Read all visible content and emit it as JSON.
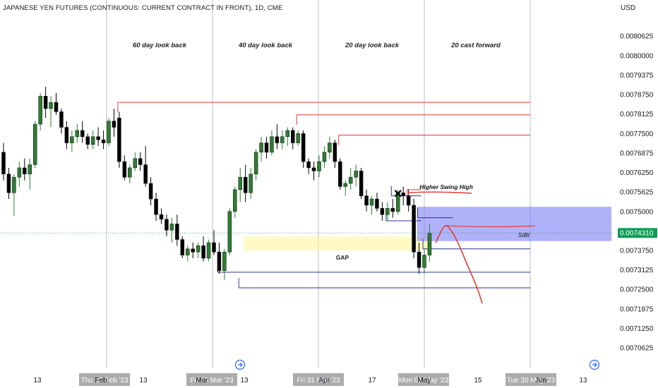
{
  "header": {
    "title": "JAPANESE YEN FUTURES (CONTINUOUS: CURRENT CONTRACT IN FRONT), 1D, CME",
    "currency": "USD"
  },
  "colors": {
    "up": "#2e7d32",
    "down": "#000000",
    "resistance": "#e53935",
    "support": "#283593",
    "gap_zone": "#fff59d",
    "sibi_zone": "#7b7ff5",
    "forecast": "#e53935",
    "last_price": "#0f9d58"
  },
  "chart_data": {
    "type": "candlestick",
    "title": "JAPANESE YEN FUTURES (CONTINUOUS: CURRENT CONTRACT IN FRONT), 1D, CME",
    "ylabel": "USD",
    "ylim": [
      0.00704,
      0.00814
    ],
    "y_ticks": [
      "0.0080625",
      "0.0080000",
      "0.0079375",
      "0.0078750",
      "0.0078125",
      "0.0077500",
      "0.0076875",
      "0.0076250",
      "0.0075625",
      "0.0075000",
      "0.0074375",
      "0.0073750",
      "0.0073125",
      "0.0072500",
      "0.0071875",
      "0.0071250",
      "0.0070625"
    ],
    "x_ticks": [
      "13",
      "Feb",
      "13",
      "Mar",
      "13",
      "Apr",
      "17",
      "May",
      "15",
      "Jun",
      "13"
    ],
    "x_tick_highlights": [
      "Thu 02 Feb '23",
      "Fri 03 Mar '23",
      "Fri 31 Mar '23",
      "Mon 01 May '23",
      "Tue 30 May '23"
    ],
    "last_price": "0.0074310",
    "section_labels": [
      "60 day look back",
      "40 day look back",
      "20 day look back",
      "20 cast forward"
    ],
    "annotations": {
      "gap": "GAP",
      "sibi": "SIBI",
      "higher_swing_high": "Higher Swing High",
      "x_mark": "✕"
    },
    "candles": [
      {
        "o": 0.00769,
        "h": 0.00772,
        "l": 0.0076,
        "c": 0.00762
      },
      {
        "o": 0.00762,
        "h": 0.00764,
        "l": 0.00754,
        "c": 0.00756
      },
      {
        "o": 0.00756,
        "h": 0.00762,
        "l": 0.007485,
        "c": 0.00761
      },
      {
        "o": 0.00761,
        "h": 0.00766,
        "l": 0.00758,
        "c": 0.00764
      },
      {
        "o": 0.00764,
        "h": 0.00767,
        "l": 0.0076,
        "c": 0.00762
      },
      {
        "o": 0.00762,
        "h": 0.00767,
        "l": 0.00757,
        "c": 0.00765
      },
      {
        "o": 0.00765,
        "h": 0.00779,
        "l": 0.00764,
        "c": 0.00778
      },
      {
        "o": 0.00778,
        "h": 0.00788,
        "l": 0.00776,
        "c": 0.00787
      },
      {
        "o": 0.00787,
        "h": 0.0079,
        "l": 0.0078,
        "c": 0.00783
      },
      {
        "o": 0.00783,
        "h": 0.00787,
        "l": 0.00777,
        "c": 0.00785
      },
      {
        "o": 0.00785,
        "h": 0.00788,
        "l": 0.00781,
        "c": 0.00782
      },
      {
        "o": 0.00782,
        "h": 0.00783,
        "l": 0.00775,
        "c": 0.00777
      },
      {
        "o": 0.00777,
        "h": 0.00779,
        "l": 0.0077,
        "c": 0.00772
      },
      {
        "o": 0.00772,
        "h": 0.00776,
        "l": 0.00769,
        "c": 0.00774
      },
      {
        "o": 0.00774,
        "h": 0.00778,
        "l": 0.00772,
        "c": 0.00776
      },
      {
        "o": 0.00776,
        "h": 0.00779,
        "l": 0.00772,
        "c": 0.00774
      },
      {
        "o": 0.00774,
        "h": 0.00775,
        "l": 0.0077,
        "c": 0.007715
      },
      {
        "o": 0.007715,
        "h": 0.00776,
        "l": 0.0077,
        "c": 0.00774
      },
      {
        "o": 0.00774,
        "h": 0.00777,
        "l": 0.00771,
        "c": 0.00773
      },
      {
        "o": 0.00773,
        "h": 0.00776,
        "l": 0.0077,
        "c": 0.00772
      },
      {
        "o": 0.00772,
        "h": 0.0078,
        "l": 0.00771,
        "c": 0.00779
      },
      {
        "o": 0.00779,
        "h": 0.00783,
        "l": 0.00774,
        "c": 0.00777
      },
      {
        "o": 0.0078,
        "h": 0.00782,
        "l": 0.00764,
        "c": 0.00766
      },
      {
        "o": 0.00766,
        "h": 0.00768,
        "l": 0.0076,
        "c": 0.00761
      },
      {
        "o": 0.00761,
        "h": 0.00765,
        "l": 0.00759,
        "c": 0.00764
      },
      {
        "o": 0.00764,
        "h": 0.00769,
        "l": 0.00763,
        "c": 0.00767
      },
      {
        "o": 0.00767,
        "h": 0.00769,
        "l": 0.00763,
        "c": 0.00765
      },
      {
        "o": 0.00765,
        "h": 0.00771,
        "l": 0.00758,
        "c": 0.00759
      },
      {
        "o": 0.00759,
        "h": 0.00761,
        "l": 0.00752,
        "c": 0.00754
      },
      {
        "o": 0.00754,
        "h": 0.00756,
        "l": 0.00747,
        "c": 0.00749
      },
      {
        "o": 0.00749,
        "h": 0.00751,
        "l": 0.00746,
        "c": 0.007475
      },
      {
        "o": 0.007475,
        "h": 0.00749,
        "l": 0.00742,
        "c": 0.00744
      },
      {
        "o": 0.00744,
        "h": 0.00748,
        "l": 0.0074,
        "c": 0.00746
      },
      {
        "o": 0.00746,
        "h": 0.00749,
        "l": 0.00739,
        "c": 0.00741
      },
      {
        "o": 0.00741,
        "h": 0.00742,
        "l": 0.00735,
        "c": 0.00736
      },
      {
        "o": 0.00736,
        "h": 0.00739,
        "l": 0.00734,
        "c": 0.00738
      },
      {
        "o": 0.00738,
        "h": 0.0074,
        "l": 0.00735,
        "c": 0.00737
      },
      {
        "o": 0.00737,
        "h": 0.0074,
        "l": 0.00735,
        "c": 0.00739
      },
      {
        "o": 0.00739,
        "h": 0.00742,
        "l": 0.00734,
        "c": 0.00735
      },
      {
        "o": 0.00735,
        "h": 0.00741,
        "l": 0.00734,
        "c": 0.0074
      },
      {
        "o": 0.0074,
        "h": 0.00744,
        "l": 0.00736,
        "c": 0.00737
      },
      {
        "o": 0.00737,
        "h": 0.0074,
        "l": 0.0073,
        "c": 0.00731
      },
      {
        "o": 0.00731,
        "h": 0.00738,
        "l": 0.00728,
        "c": 0.00737
      },
      {
        "o": 0.00737,
        "h": 0.00751,
        "l": 0.00736,
        "c": 0.0075
      },
      {
        "o": 0.0075,
        "h": 0.00758,
        "l": 0.00748,
        "c": 0.00757
      },
      {
        "o": 0.00757,
        "h": 0.00764,
        "l": 0.00753,
        "c": 0.00761
      },
      {
        "o": 0.00761,
        "h": 0.00765,
        "l": 0.00753,
        "c": 0.00756
      },
      {
        "o": 0.00756,
        "h": 0.00764,
        "l": 0.00754,
        "c": 0.00762
      },
      {
        "o": 0.00762,
        "h": 0.0077,
        "l": 0.0076,
        "c": 0.00769
      },
      {
        "o": 0.00769,
        "h": 0.00774,
        "l": 0.00766,
        "c": 0.00772
      },
      {
        "o": 0.00772,
        "h": 0.00774,
        "l": 0.00767,
        "c": 0.00769
      },
      {
        "o": 0.00769,
        "h": 0.00776,
        "l": 0.00768,
        "c": 0.00774
      },
      {
        "o": 0.00774,
        "h": 0.00778,
        "l": 0.0077,
        "c": 0.00772
      },
      {
        "o": 0.00772,
        "h": 0.00776,
        "l": 0.0077,
        "c": 0.00774
      },
      {
        "o": 0.00774,
        "h": 0.00777,
        "l": 0.00771,
        "c": 0.00776
      },
      {
        "o": 0.00776,
        "h": 0.00777,
        "l": 0.0077,
        "c": 0.00772
      },
      {
        "o": 0.00772,
        "h": 0.00776,
        "l": 0.00771,
        "c": 0.00775
      },
      {
        "o": 0.00775,
        "h": 0.00776,
        "l": 0.00764,
        "c": 0.00766
      },
      {
        "o": 0.00766,
        "h": 0.00767,
        "l": 0.00762,
        "c": 0.00764
      },
      {
        "o": 0.00764,
        "h": 0.00766,
        "l": 0.0076,
        "c": 0.00763
      },
      {
        "o": 0.00763,
        "h": 0.00768,
        "l": 0.00761,
        "c": 0.00766
      },
      {
        "o": 0.00766,
        "h": 0.00771,
        "l": 0.00764,
        "c": 0.00769
      },
      {
        "o": 0.00769,
        "h": 0.00774,
        "l": 0.00767,
        "c": 0.00772
      },
      {
        "o": 0.00772,
        "h": 0.00773,
        "l": 0.00764,
        "c": 0.00766
      },
      {
        "o": 0.00766,
        "h": 0.00767,
        "l": 0.00757,
        "c": 0.00758
      },
      {
        "o": 0.00758,
        "h": 0.0076,
        "l": 0.00755,
        "c": 0.00759
      },
      {
        "o": 0.00759,
        "h": 0.00764,
        "l": 0.00757,
        "c": 0.00761
      },
      {
        "o": 0.00761,
        "h": 0.00765,
        "l": 0.00758,
        "c": 0.00763
      },
      {
        "o": 0.00763,
        "h": 0.00764,
        "l": 0.00754,
        "c": 0.00755
      },
      {
        "o": 0.00755,
        "h": 0.00757,
        "l": 0.0075,
        "c": 0.00752
      },
      {
        "o": 0.00752,
        "h": 0.00755,
        "l": 0.00749,
        "c": 0.00754
      },
      {
        "o": 0.00754,
        "h": 0.00756,
        "l": 0.0075,
        "c": 0.00751
      },
      {
        "o": 0.00751,
        "h": 0.00753,
        "l": 0.00747,
        "c": 0.00749
      },
      {
        "o": 0.00749,
        "h": 0.00753,
        "l": 0.00747,
        "c": 0.00751
      },
      {
        "o": 0.00751,
        "h": 0.00754,
        "l": 0.00748,
        "c": 0.0075
      },
      {
        "o": 0.0075,
        "h": 0.00757,
        "l": 0.00749,
        "c": 0.00756
      },
      {
        "o": 0.00756,
        "h": 0.00758,
        "l": 0.00752,
        "c": 0.00755
      },
      {
        "o": 0.00755,
        "h": 0.00757,
        "l": 0.0075,
        "c": 0.00752
      },
      {
        "o": 0.00752,
        "h": 0.00754,
        "l": 0.00735,
        "c": 0.00737
      },
      {
        "o": 0.00737,
        "h": 0.0074,
        "l": 0.0073,
        "c": 0.00732
      },
      {
        "o": 0.00732,
        "h": 0.00738,
        "l": 0.0073,
        "c": 0.00736
      },
      {
        "o": 0.00736,
        "h": 0.00746,
        "l": 0.00734,
        "c": 0.00743
      }
    ],
    "levels": [
      {
        "kind": "resistance",
        "price": 0.00785,
        "from_bar": 22
      },
      {
        "kind": "resistance",
        "price": 0.00781,
        "from_bar": 56
      },
      {
        "kind": "resistance",
        "price": 0.007745,
        "from_bar": 64
      },
      {
        "kind": "resistance",
        "price": 0.00757,
        "from_bar": 77,
        "to_bar": 79
      },
      {
        "kind": "support",
        "price": 0.00755,
        "from_bar": 74,
        "to_bar": 79
      },
      {
        "kind": "support",
        "price": 0.00748,
        "from_bar": 79,
        "to_bar": 85
      },
      {
        "kind": "support",
        "price": 0.00747,
        "from_bar": 73,
        "to_bar": 79
      },
      {
        "kind": "support",
        "price": 0.00738,
        "from_bar": 80
      },
      {
        "kind": "support",
        "price": 0.007305,
        "from_bar": 41
      },
      {
        "kind": "support",
        "price": 0.007255,
        "from_bar": 45
      }
    ],
    "zones": [
      {
        "name": "GAP",
        "y0": 0.007375,
        "y1": 0.00742,
        "from_bar": 46,
        "to_bar": 81
      },
      {
        "name": "SIBI",
        "y0": 0.007405,
        "y1": 0.007515,
        "from_bar": 79
      }
    ]
  }
}
